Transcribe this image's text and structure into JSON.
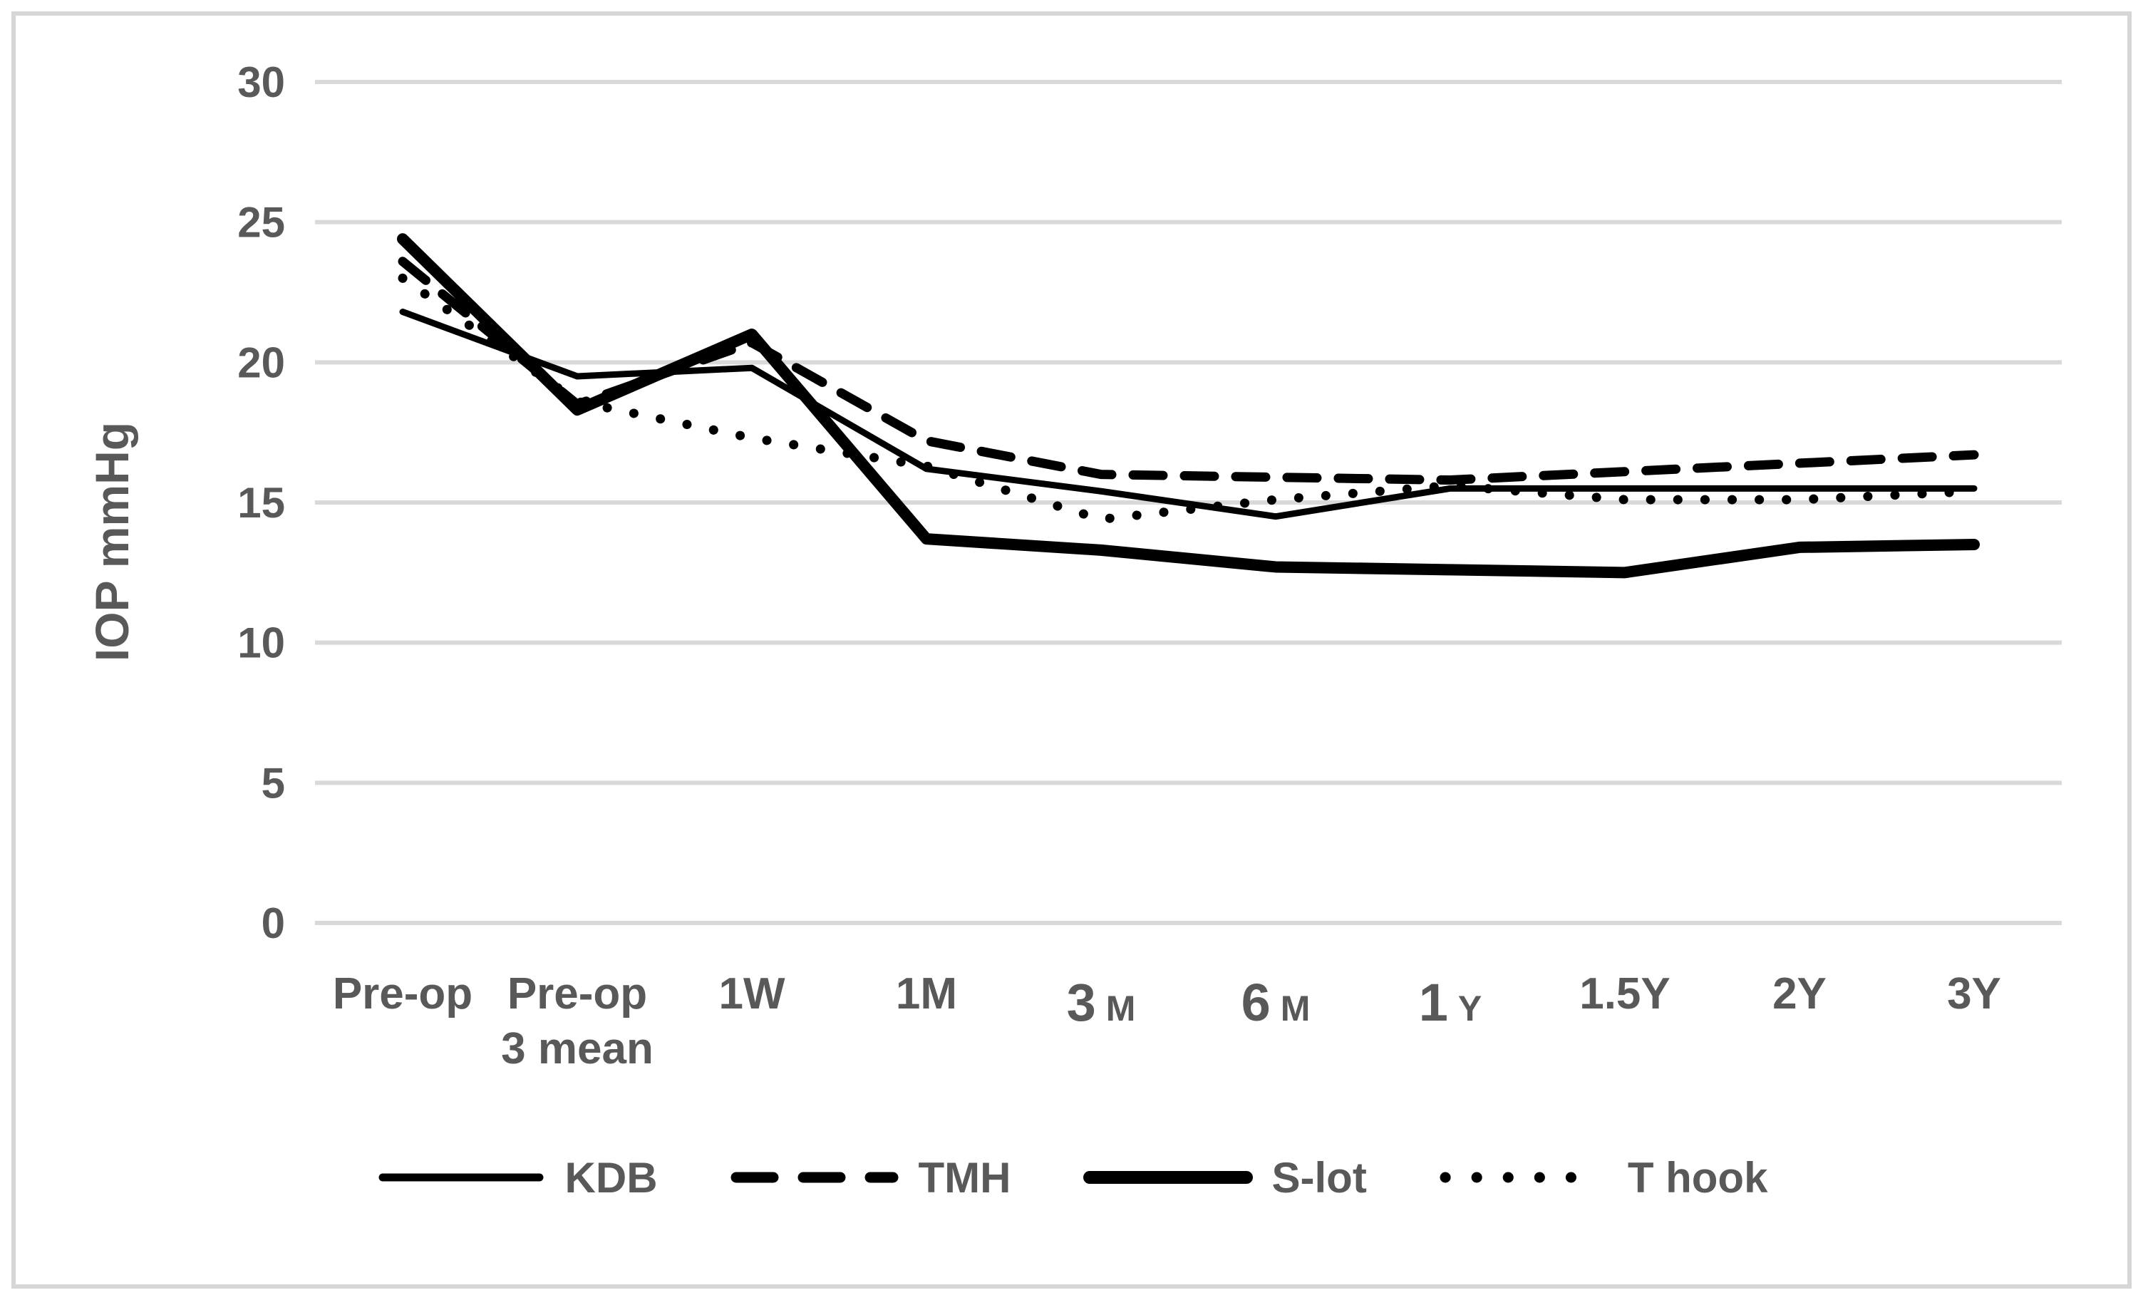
{
  "chart_data": {
    "type": "line",
    "title": "",
    "xlabel": "",
    "ylabel": "IOP mmHg",
    "ylim": [
      0,
      30
    ],
    "yticks": [
      30,
      25,
      20,
      15,
      10,
      5,
      0
    ],
    "grid": "horizontal",
    "legend_position": "bottom",
    "categories": [
      {
        "label": "Pre-op"
      },
      {
        "label": "Pre-op",
        "sub": "3 mean"
      },
      {
        "label": "1W"
      },
      {
        "label": "1M"
      },
      {
        "label": "3 M",
        "emphasis": true
      },
      {
        "label": "6 M",
        "emphasis": true
      },
      {
        "label": "1 Y",
        "emphasis": true
      },
      {
        "label": "1.5Y"
      },
      {
        "label": "2Y"
      },
      {
        "label": "3Y"
      }
    ],
    "series": [
      {
        "name": "KDB",
        "style": "solid-thin",
        "values": [
          21.8,
          19.5,
          19.8,
          16.2,
          15.4,
          14.5,
          15.5,
          15.5,
          15.5,
          15.5
        ]
      },
      {
        "name": "TMH",
        "style": "dashed",
        "values": [
          23.6,
          18.5,
          20.7,
          17.2,
          16.0,
          15.9,
          15.8,
          16.1,
          16.4,
          16.7
        ]
      },
      {
        "name": "S-lot",
        "style": "solid-thick",
        "values": [
          24.4,
          18.3,
          21.0,
          13.7,
          13.3,
          12.7,
          12.6,
          12.5,
          13.4,
          13.5
        ]
      },
      {
        "name": "T hook",
        "style": "dotted",
        "values": [
          23.0,
          18.6,
          17.3,
          16.3,
          14.4,
          15.1,
          15.6,
          15.1,
          15.1,
          15.4
        ]
      }
    ],
    "colors": {
      "line": "#000000",
      "axis_text": "#595959",
      "gridline": "#d9d9d9",
      "frame_border": "#d6d6d6",
      "background": "#ffffff"
    }
  }
}
